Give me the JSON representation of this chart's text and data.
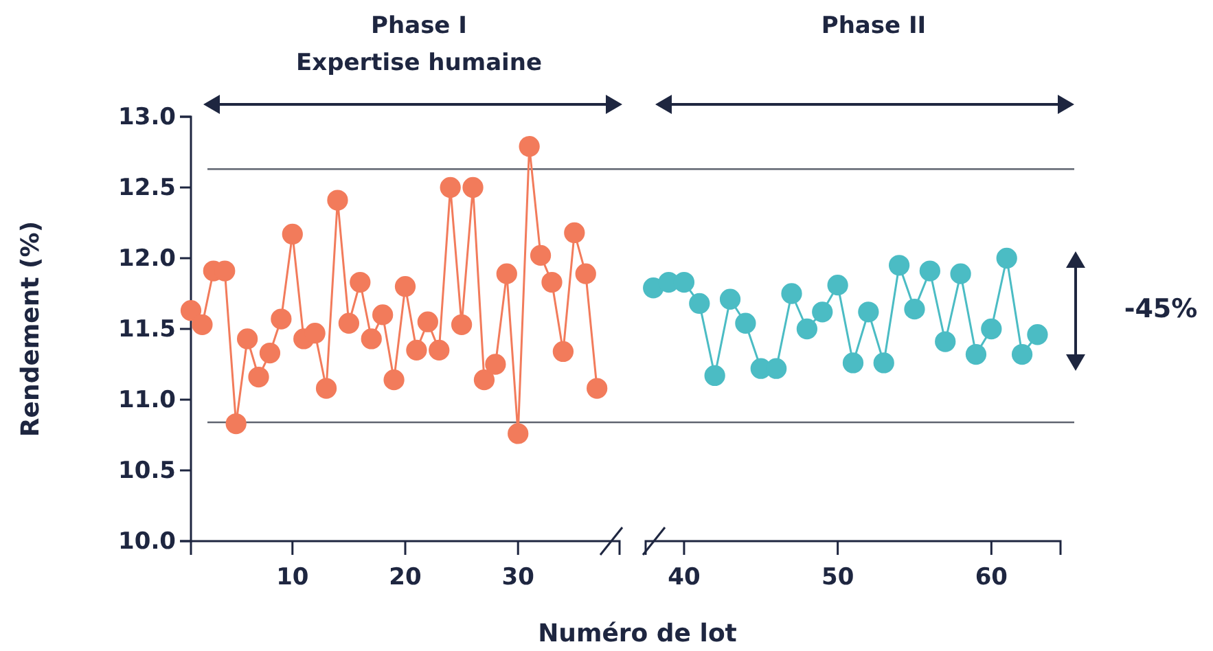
{
  "chart_data": [
    {
      "type": "line",
      "title": "Phase I",
      "subtitle": "Expertise humaine",
      "xlabel": "Numéro de lot",
      "ylabel": "Rendement (%)",
      "marker": "circle",
      "x": [
        1,
        2,
        3,
        4,
        5,
        6,
        7,
        8,
        9,
        10,
        11,
        12,
        13,
        14,
        15,
        16,
        17,
        18,
        19,
        20,
        21,
        22,
        23,
        24,
        25,
        26,
        27,
        28,
        29,
        30,
        31,
        32,
        33,
        34,
        35,
        36,
        37
      ],
      "series": [
        {
          "color": "#f27b5b",
          "values": [
            11.63,
            11.53,
            11.91,
            11.91,
            10.83,
            11.43,
            11.16,
            11.33,
            11.57,
            12.17,
            11.43,
            11.47,
            11.08,
            12.41,
            11.54,
            11.83,
            11.43,
            11.6,
            11.14,
            11.8,
            11.35,
            11.55,
            11.35,
            12.5,
            11.53,
            12.5,
            11.14,
            11.25,
            11.89,
            10.76,
            12.79,
            12.02,
            11.83,
            11.34,
            12.18,
            11.89,
            11.08
          ]
        }
      ],
      "xlim": [
        1,
        39
      ],
      "xticks": [
        10,
        20,
        30
      ],
      "ylim": [
        10,
        13
      ],
      "yticks": [
        {
          "value": 10,
          "label": "10.0"
        },
        {
          "value": 10.5,
          "label": "10.5"
        },
        {
          "value": 11,
          "label": "11.0"
        },
        {
          "value": 11.5,
          "label": "11.5"
        },
        {
          "value": 12,
          "label": "12.0"
        },
        {
          "value": 12.5,
          "label": "12.5"
        },
        {
          "value": 13,
          "label": "13.0"
        }
      ],
      "ref_lines": [
        {
          "axis": "y",
          "value": 12.63,
          "color": "#5f6470"
        },
        {
          "axis": "y",
          "value": 10.84,
          "color": "#5f6470"
        }
      ]
    },
    {
      "type": "line",
      "title": "Phase II",
      "marker": "circle",
      "tick_labels": "x",
      "x": [
        38,
        39,
        40,
        41,
        42,
        43,
        44,
        45,
        46,
        47,
        48,
        49,
        50,
        51,
        52,
        53,
        54,
        55,
        56,
        57,
        58,
        59,
        60,
        61,
        62,
        63
      ],
      "series": [
        {
          "color": "#4bbcc4",
          "values": [
            11.79,
            11.83,
            11.83,
            11.68,
            11.17,
            11.71,
            11.54,
            11.22,
            11.22,
            11.75,
            11.5,
            11.62,
            11.81,
            11.26,
            11.62,
            11.26,
            11.95,
            11.64,
            11.91,
            11.41,
            11.89,
            11.32,
            11.5,
            12.0,
            11.32,
            11.46
          ]
        }
      ],
      "xlim": [
        37.5,
        64.5
      ],
      "xticks": [
        40,
        50,
        60
      ],
      "ylim": [
        10,
        13
      ],
      "ref_lines": [
        {
          "axis": "y",
          "value": 12.63,
          "color": "#5f6470"
        },
        {
          "axis": "y",
          "value": 10.84,
          "color": "#5f6470"
        }
      ],
      "annotations": [
        "-45%"
      ]
    }
  ]
}
